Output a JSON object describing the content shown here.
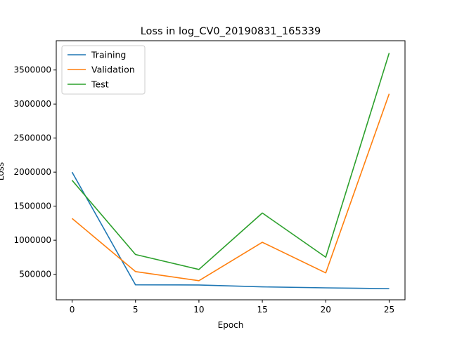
{
  "chart_data": {
    "type": "line",
    "title": "Loss in log_CV0_20190831_165339",
    "xlabel": "Epoch",
    "ylabel": "Loss",
    "x": [
      0,
      5,
      10,
      15,
      20,
      25
    ],
    "xlim": [
      -1.25,
      26.25
    ],
    "ylim": [
      125000,
      3930000
    ],
    "xticks": [
      0,
      5,
      10,
      15,
      20,
      25
    ],
    "yticks": [
      500000,
      1000000,
      1500000,
      2000000,
      2500000,
      3000000,
      3500000
    ],
    "grid": false,
    "legend_position": "upper-left",
    "series": [
      {
        "name": "Training",
        "color": "#1f77b4",
        "values": [
          2000000,
          345000,
          343000,
          315000,
          300000,
          288000
        ]
      },
      {
        "name": "Validation",
        "color": "#ff7f0e",
        "values": [
          1320000,
          540000,
          405000,
          970000,
          520000,
          3150000
        ]
      },
      {
        "name": "Test",
        "color": "#2ca02c",
        "values": [
          1880000,
          790000,
          570000,
          1400000,
          750000,
          3750000
        ]
      }
    ]
  }
}
